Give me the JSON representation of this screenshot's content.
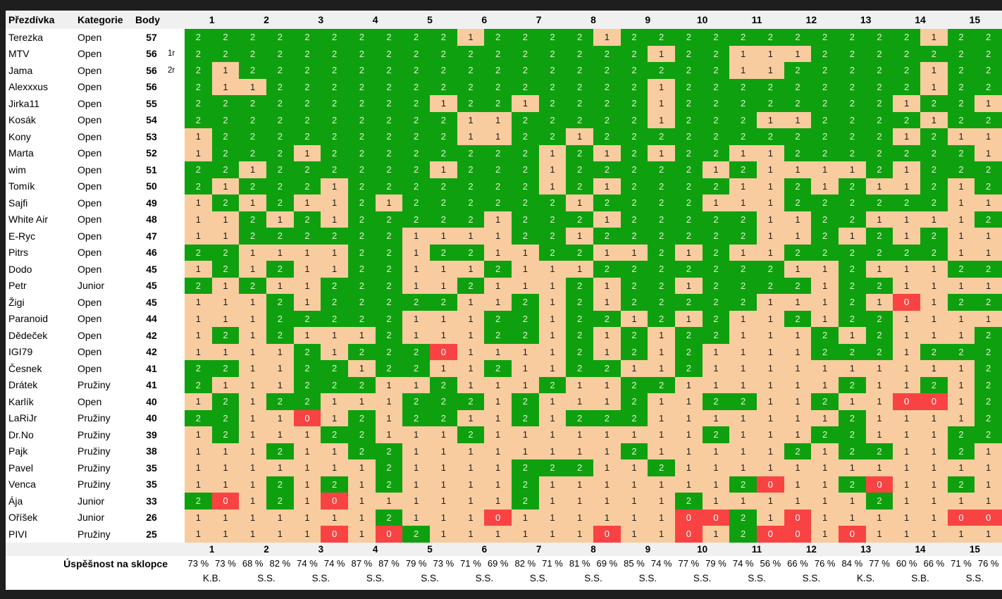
{
  "table": {
    "columns": {
      "nickname": "Přezdívka",
      "category": "Kategorie",
      "points": "Body"
    },
    "station_numbers": [
      "1",
      "2",
      "3",
      "4",
      "5",
      "6",
      "7",
      "8",
      "9",
      "10",
      "11",
      "12",
      "13",
      "14",
      "15"
    ],
    "colors": {
      "score2_bg": "#0FA00F",
      "score2_fg": "#DFF0CF",
      "score1_bg": "#F8CC9F",
      "score1_fg": "#1D1D1D",
      "score0_bg": "#F94343",
      "score0_fg": "#FFFFFF",
      "header_bg": "#F0F0F0",
      "page_bg": "#1E1E1E"
    },
    "rows": [
      {
        "name": "Terezka",
        "category": "Open",
        "points": "57",
        "note": "",
        "cells": [
          2,
          2,
          2,
          2,
          2,
          2,
          2,
          2,
          2,
          2,
          1,
          2,
          2,
          2,
          2,
          1,
          2,
          2,
          2,
          2,
          2,
          2,
          2,
          2,
          2,
          2,
          2,
          1,
          2,
          2
        ]
      },
      {
        "name": "MTV",
        "category": "Open",
        "points": "56",
        "note": "1r",
        "cells": [
          2,
          2,
          2,
          2,
          2,
          2,
          2,
          2,
          2,
          2,
          2,
          2,
          2,
          2,
          2,
          2,
          2,
          1,
          2,
          2,
          1,
          1,
          1,
          2,
          2,
          2,
          2,
          2,
          2,
          2
        ]
      },
      {
        "name": "Jama",
        "category": "Open",
        "points": "56",
        "note": "2r",
        "cells": [
          2,
          1,
          2,
          2,
          2,
          2,
          2,
          2,
          2,
          2,
          2,
          2,
          2,
          2,
          2,
          2,
          2,
          2,
          2,
          2,
          1,
          1,
          2,
          2,
          2,
          2,
          2,
          1,
          2,
          2
        ]
      },
      {
        "name": "Alexxxus",
        "category": "Open",
        "points": "56",
        "note": "",
        "cells": [
          2,
          1,
          1,
          2,
          2,
          2,
          2,
          2,
          2,
          2,
          2,
          2,
          2,
          2,
          2,
          2,
          2,
          1,
          2,
          2,
          2,
          2,
          2,
          2,
          2,
          2,
          2,
          1,
          2,
          2
        ]
      },
      {
        "name": "Jirka11",
        "category": "Open",
        "points": "55",
        "note": "",
        "cells": [
          2,
          2,
          2,
          2,
          2,
          2,
          2,
          2,
          2,
          1,
          2,
          2,
          1,
          2,
          2,
          2,
          2,
          1,
          2,
          2,
          2,
          2,
          2,
          2,
          2,
          2,
          1,
          2,
          2,
          1
        ]
      },
      {
        "name": "Kosák",
        "category": "Open",
        "points": "54",
        "note": "",
        "cells": [
          2,
          2,
          2,
          2,
          2,
          2,
          2,
          2,
          2,
          2,
          1,
          1,
          2,
          2,
          2,
          2,
          2,
          1,
          2,
          2,
          2,
          1,
          1,
          2,
          2,
          2,
          2,
          1,
          2,
          2
        ]
      },
      {
        "name": "Kony",
        "category": "Open",
        "points": "53",
        "note": "",
        "cells": [
          1,
          2,
          2,
          2,
          2,
          2,
          2,
          2,
          2,
          2,
          1,
          1,
          2,
          2,
          1,
          2,
          2,
          2,
          2,
          2,
          2,
          2,
          2,
          2,
          2,
          2,
          1,
          2,
          1,
          1
        ]
      },
      {
        "name": "Marta",
        "category": "Open",
        "points": "52",
        "note": "",
        "cells": [
          1,
          2,
          2,
          2,
          1,
          2,
          2,
          2,
          2,
          2,
          2,
          2,
          2,
          1,
          2,
          1,
          2,
          1,
          2,
          2,
          1,
          1,
          2,
          2,
          2,
          2,
          2,
          2,
          2,
          1
        ]
      },
      {
        "name": "wim",
        "category": "Open",
        "points": "51",
        "note": "",
        "cells": [
          2,
          2,
          1,
          2,
          2,
          2,
          2,
          2,
          2,
          1,
          2,
          2,
          2,
          1,
          2,
          2,
          2,
          2,
          2,
          1,
          2,
          1,
          1,
          1,
          1,
          2,
          1,
          2,
          2,
          2
        ]
      },
      {
        "name": "Tomík",
        "category": "Open",
        "points": "50",
        "note": "",
        "cells": [
          2,
          1,
          2,
          2,
          2,
          1,
          2,
          2,
          2,
          2,
          2,
          2,
          2,
          1,
          2,
          1,
          2,
          2,
          2,
          2,
          1,
          1,
          2,
          1,
          2,
          1,
          1,
          2,
          1,
          2
        ]
      },
      {
        "name": "Sajfi",
        "category": "Open",
        "points": "49",
        "note": "",
        "cells": [
          1,
          2,
          1,
          2,
          1,
          1,
          2,
          1,
          2,
          2,
          2,
          2,
          2,
          2,
          1,
          2,
          2,
          2,
          2,
          1,
          1,
          1,
          2,
          2,
          2,
          2,
          2,
          2,
          1,
          1
        ]
      },
      {
        "name": "White Air",
        "category": "Open",
        "points": "48",
        "note": "",
        "cells": [
          1,
          1,
          2,
          1,
          2,
          1,
          2,
          2,
          2,
          2,
          2,
          1,
          2,
          2,
          2,
          1,
          2,
          2,
          2,
          2,
          2,
          1,
          1,
          2,
          2,
          1,
          1,
          1,
          1,
          2
        ]
      },
      {
        "name": "E-Ryc",
        "category": "Open",
        "points": "47",
        "note": "",
        "cells": [
          1,
          1,
          2,
          2,
          2,
          2,
          2,
          2,
          1,
          1,
          1,
          1,
          2,
          2,
          1,
          2,
          2,
          2,
          2,
          2,
          2,
          1,
          1,
          2,
          1,
          2,
          1,
          2,
          1,
          1
        ]
      },
      {
        "name": "Pitrs",
        "category": "Open",
        "points": "46",
        "note": "",
        "cells": [
          2,
          2,
          1,
          1,
          1,
          1,
          2,
          2,
          1,
          2,
          2,
          1,
          1,
          2,
          2,
          1,
          1,
          2,
          1,
          2,
          1,
          1,
          2,
          2,
          2,
          2,
          2,
          2,
          1,
          1
        ]
      },
      {
        "name": "Dodo",
        "category": "Open",
        "points": "45",
        "note": "",
        "cells": [
          1,
          2,
          1,
          2,
          1,
          1,
          2,
          2,
          1,
          1,
          1,
          2,
          1,
          1,
          1,
          2,
          2,
          2,
          2,
          2,
          2,
          2,
          1,
          1,
          2,
          1,
          1,
          1,
          2,
          2
        ]
      },
      {
        "name": "Petr",
        "category": "Junior",
        "points": "45",
        "note": "",
        "cells": [
          2,
          1,
          2,
          1,
          1,
          2,
          2,
          2,
          1,
          1,
          2,
          1,
          1,
          1,
          2,
          1,
          2,
          2,
          1,
          2,
          2,
          2,
          2,
          1,
          2,
          2,
          1,
          1,
          1,
          1
        ]
      },
      {
        "name": "Žigi",
        "category": "Open",
        "points": "45",
        "note": "",
        "cells": [
          1,
          1,
          1,
          2,
          1,
          2,
          2,
          2,
          2,
          2,
          1,
          1,
          2,
          1,
          2,
          1,
          2,
          2,
          2,
          2,
          2,
          1,
          1,
          1,
          2,
          1,
          0,
          1,
          2,
          2
        ]
      },
      {
        "name": "Paranoid",
        "category": "Open",
        "points": "44",
        "note": "",
        "cells": [
          1,
          1,
          1,
          2,
          2,
          2,
          2,
          2,
          1,
          1,
          1,
          2,
          2,
          1,
          2,
          2,
          1,
          2,
          1,
          2,
          1,
          1,
          2,
          1,
          2,
          2,
          1,
          1,
          1,
          1
        ]
      },
      {
        "name": "Dědeček",
        "category": "Open",
        "points": "42",
        "note": "",
        "cells": [
          1,
          2,
          1,
          2,
          1,
          1,
          1,
          2,
          1,
          1,
          1,
          2,
          2,
          1,
          2,
          1,
          2,
          1,
          2,
          2,
          1,
          1,
          1,
          2,
          1,
          2,
          1,
          1,
          1,
          2
        ]
      },
      {
        "name": "IGI79",
        "category": "Open",
        "points": "42",
        "note": "",
        "cells": [
          1,
          1,
          1,
          1,
          2,
          1,
          2,
          2,
          2,
          0,
          1,
          1,
          1,
          1,
          2,
          1,
          2,
          1,
          2,
          1,
          1,
          1,
          1,
          2,
          2,
          2,
          1,
          2,
          2,
          2
        ]
      },
      {
        "name": "Česnek",
        "category": "Open",
        "points": "41",
        "note": "",
        "cells": [
          2,
          2,
          1,
          1,
          2,
          2,
          1,
          2,
          2,
          1,
          1,
          2,
          1,
          1,
          2,
          2,
          1,
          1,
          2,
          1,
          1,
          1,
          1,
          1,
          1,
          1,
          1,
          1,
          1,
          2
        ]
      },
      {
        "name": "Drátek",
        "category": "Pružiny",
        "points": "41",
        "note": "",
        "cells": [
          2,
          1,
          1,
          1,
          2,
          2,
          2,
          1,
          1,
          2,
          1,
          1,
          1,
          2,
          1,
          1,
          2,
          2,
          1,
          1,
          1,
          1,
          1,
          1,
          2,
          1,
          1,
          2,
          1,
          2
        ]
      },
      {
        "name": "Karlík",
        "category": "Open",
        "points": "40",
        "note": "",
        "cells": [
          1,
          2,
          1,
          2,
          2,
          1,
          1,
          1,
          2,
          2,
          2,
          1,
          2,
          1,
          1,
          1,
          2,
          1,
          1,
          2,
          2,
          1,
          1,
          2,
          1,
          1,
          0,
          0,
          1,
          2
        ]
      },
      {
        "name": "LaRiJr",
        "category": "Pružiny",
        "points": "40",
        "note": "",
        "cells": [
          2,
          2,
          1,
          1,
          0,
          1,
          2,
          1,
          2,
          2,
          1,
          1,
          2,
          1,
          2,
          2,
          2,
          1,
          1,
          1,
          1,
          1,
          1,
          1,
          2,
          1,
          1,
          1,
          1,
          2
        ]
      },
      {
        "name": "Dr.No",
        "category": "Pružiny",
        "points": "39",
        "note": "",
        "cells": [
          1,
          2,
          1,
          1,
          1,
          2,
          2,
          1,
          1,
          1,
          2,
          1,
          1,
          1,
          1,
          1,
          1,
          1,
          1,
          2,
          1,
          1,
          1,
          2,
          2,
          1,
          1,
          1,
          2,
          2
        ]
      },
      {
        "name": "Pajk",
        "category": "Pružiny",
        "points": "38",
        "note": "",
        "cells": [
          1,
          1,
          1,
          2,
          1,
          1,
          2,
          2,
          1,
          1,
          1,
          1,
          1,
          1,
          1,
          1,
          2,
          1,
          1,
          1,
          1,
          1,
          2,
          1,
          2,
          2,
          1,
          1,
          2,
          1
        ]
      },
      {
        "name": "Pavel",
        "category": "Pružiny",
        "points": "35",
        "note": "",
        "cells": [
          1,
          1,
          1,
          1,
          1,
          1,
          1,
          2,
          1,
          1,
          1,
          1,
          2,
          2,
          2,
          1,
          1,
          2,
          1,
          1,
          1,
          1,
          1,
          1,
          1,
          1,
          1,
          1,
          1,
          1
        ]
      },
      {
        "name": "Venca",
        "category": "Pružiny",
        "points": "35",
        "note": "",
        "cells": [
          1,
          1,
          1,
          2,
          1,
          2,
          1,
          2,
          1,
          1,
          1,
          1,
          2,
          1,
          1,
          1,
          1,
          1,
          1,
          1,
          2,
          0,
          1,
          1,
          2,
          0,
          1,
          1,
          2,
          1
        ]
      },
      {
        "name": "Ája",
        "category": "Junior",
        "points": "33",
        "note": "",
        "cells": [
          2,
          0,
          1,
          2,
          1,
          0,
          1,
          1,
          1,
          1,
          1,
          1,
          2,
          1,
          1,
          1,
          1,
          1,
          2,
          1,
          1,
          1,
          1,
          1,
          1,
          2,
          1,
          1,
          1,
          1
        ]
      },
      {
        "name": "Oříšek",
        "category": "Junior",
        "points": "26",
        "note": "",
        "cells": [
          1,
          1,
          1,
          1,
          1,
          1,
          1,
          2,
          1,
          1,
          1,
          0,
          1,
          1,
          1,
          1,
          1,
          1,
          0,
          0,
          2,
          1,
          0,
          1,
          1,
          1,
          1,
          1,
          0,
          0
        ]
      },
      {
        "name": "PIVI",
        "category": "Pružiny",
        "points": "25",
        "note": "",
        "cells": [
          1,
          1,
          1,
          1,
          1,
          0,
          1,
          0,
          2,
          1,
          1,
          1,
          1,
          1,
          1,
          0,
          1,
          1,
          0,
          1,
          2,
          0,
          0,
          1,
          0,
          1,
          1,
          1,
          1,
          1
        ]
      }
    ],
    "footer": {
      "label": "Úspěšnost na sklopce",
      "percentages": [
        "73 %",
        "73 %",
        "68 %",
        "82 %",
        "74 %",
        "74 %",
        "87 %",
        "87 %",
        "79 %",
        "73 %",
        "71 %",
        "69 %",
        "82 %",
        "71 %",
        "81 %",
        "69 %",
        "85 %",
        "74 %",
        "77 %",
        "79 %",
        "74 %",
        "56 %",
        "66 %",
        "76 %",
        "84 %",
        "77 %",
        "60 %",
        "66 %",
        "71 %",
        "76 %"
      ],
      "codes": [
        "K.B.",
        "S.S.",
        "S.S.",
        "S.S.",
        "S.S.",
        "S.S.",
        "S.S.",
        "S.S.",
        "S.S.",
        "S.S.",
        "S.S.",
        "S.S.",
        "K.S.",
        "S.B.",
        "S.S."
      ]
    }
  }
}
